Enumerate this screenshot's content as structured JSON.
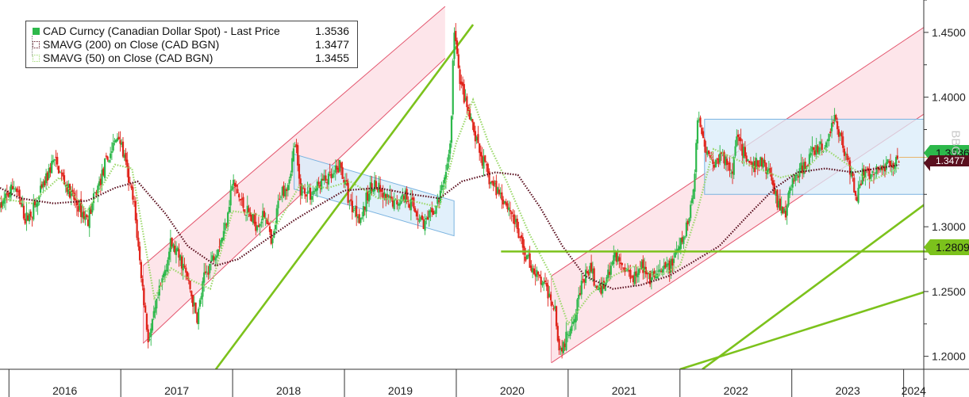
{
  "chart_data": {
    "type": "candlestick",
    "series": [
      {
        "name": "CAD Curncy (Canadian Dollar Spot) - Last Price",
        "last": 1.3536,
        "color": "#2db84b"
      },
      {
        "name": "SMAVG (200)  on Close (CAD BGN)",
        "last": 1.3477,
        "color": "#5a0f1e"
      },
      {
        "name": "SMAVG (50)  on Close (CAD BGN)",
        "last": 1.3455,
        "color": "#9bd86a"
      }
    ],
    "x_ticks": [
      "2016",
      "2017",
      "2018",
      "2019",
      "2020",
      "2021",
      "2022",
      "2023",
      "2024"
    ],
    "y_ticks": [
      "1.4500",
      "1.4000",
      "1.3500",
      "1.3000",
      "1.2500",
      "1.2000"
    ],
    "ylim": [
      1.19,
      1.475
    ],
    "xlim": [
      2015.92,
      2024.18
    ],
    "grid": false,
    "legend_position": "top-left",
    "price_path": [
      [
        2015.92,
        1.315
      ],
      [
        2016.05,
        1.332
      ],
      [
        2016.15,
        1.305
      ],
      [
        2016.25,
        1.318
      ],
      [
        2016.4,
        1.352
      ],
      [
        2016.55,
        1.325
      ],
      [
        2016.7,
        1.305
      ],
      [
        2016.85,
        1.345
      ],
      [
        2016.98,
        1.372
      ],
      [
        2017.05,
        1.345
      ],
      [
        2017.12,
        1.315
      ],
      [
        2017.2,
        1.248
      ],
      [
        2017.25,
        1.21
      ],
      [
        2017.3,
        1.232
      ],
      [
        2017.38,
        1.262
      ],
      [
        2017.45,
        1.287
      ],
      [
        2017.55,
        1.272
      ],
      [
        2017.62,
        1.252
      ],
      [
        2017.68,
        1.228
      ],
      [
        2017.75,
        1.262
      ],
      [
        2017.85,
        1.282
      ],
      [
        2017.92,
        1.295
      ],
      [
        2018.0,
        1.335
      ],
      [
        2018.08,
        1.318
      ],
      [
        2018.2,
        1.302
      ],
      [
        2018.3,
        1.31
      ],
      [
        2018.35,
        1.282
      ],
      [
        2018.42,
        1.325
      ],
      [
        2018.5,
        1.335
      ],
      [
        2018.56,
        1.365
      ],
      [
        2018.6,
        1.33
      ],
      [
        2018.7,
        1.325
      ],
      [
        2018.8,
        1.335
      ],
      [
        2018.9,
        1.338
      ],
      [
        2018.96,
        1.348
      ],
      [
        2019.05,
        1.318
      ],
      [
        2019.15,
        1.307
      ],
      [
        2019.25,
        1.335
      ],
      [
        2019.35,
        1.322
      ],
      [
        2019.45,
        1.318
      ],
      [
        2019.55,
        1.325
      ],
      [
        2019.65,
        1.31
      ],
      [
        2019.72,
        1.302
      ],
      [
        2019.8,
        1.312
      ],
      [
        2019.85,
        1.322
      ],
      [
        2019.9,
        1.34
      ],
      [
        2019.95,
        1.365
      ],
      [
        2019.98,
        1.455
      ],
      [
        2020.02,
        1.42
      ],
      [
        2020.08,
        1.395
      ],
      [
        2020.15,
        1.375
      ],
      [
        2020.2,
        1.36
      ],
      [
        2020.3,
        1.335
      ],
      [
        2020.4,
        1.325
      ],
      [
        2020.5,
        1.31
      ],
      [
        2020.6,
        1.282
      ],
      [
        2020.7,
        1.265
      ],
      [
        2020.8,
        1.252
      ],
      [
        2020.88,
        1.24
      ],
      [
        2020.92,
        1.205
      ],
      [
        2020.98,
        1.212
      ],
      [
        2021.05,
        1.232
      ],
      [
        2021.12,
        1.255
      ],
      [
        2021.2,
        1.268
      ],
      [
        2021.27,
        1.248
      ],
      [
        2021.35,
        1.262
      ],
      [
        2021.42,
        1.278
      ],
      [
        2021.5,
        1.268
      ],
      [
        2021.58,
        1.262
      ],
      [
        2021.65,
        1.272
      ],
      [
        2021.72,
        1.258
      ],
      [
        2021.8,
        1.262
      ],
      [
        2021.88,
        1.268
      ],
      [
        2021.95,
        1.275
      ],
      [
        2022.05,
        1.295
      ],
      [
        2022.12,
        1.328
      ],
      [
        2022.16,
        1.385
      ],
      [
        2022.22,
        1.365
      ],
      [
        2022.3,
        1.348
      ],
      [
        2022.38,
        1.355
      ],
      [
        2022.46,
        1.342
      ],
      [
        2022.52,
        1.375
      ],
      [
        2022.58,
        1.352
      ],
      [
        2022.65,
        1.345
      ],
      [
        2022.72,
        1.35
      ],
      [
        2022.8,
        1.342
      ],
      [
        2022.88,
        1.318
      ],
      [
        2022.94,
        1.31
      ],
      [
        2023.0,
        1.335
      ],
      [
        2023.1,
        1.345
      ],
      [
        2023.2,
        1.358
      ],
      [
        2023.3,
        1.362
      ],
      [
        2023.38,
        1.385
      ],
      [
        2023.45,
        1.365
      ],
      [
        2023.52,
        1.345
      ],
      [
        2023.58,
        1.322
      ],
      [
        2023.63,
        1.342
      ],
      [
        2023.7,
        1.338
      ],
      [
        2023.78,
        1.345
      ],
      [
        2023.85,
        1.348
      ],
      [
        2023.9,
        1.35
      ],
      [
        2023.96,
        1.3536
      ]
    ],
    "sma200_path": [
      [
        2015.92,
        1.33
      ],
      [
        2016.1,
        1.322
      ],
      [
        2016.4,
        1.318
      ],
      [
        2016.7,
        1.32
      ],
      [
        2016.95,
        1.33
      ],
      [
        2017.15,
        1.335
      ],
      [
        2017.4,
        1.31
      ],
      [
        2017.6,
        1.285
      ],
      [
        2017.85,
        1.27
      ],
      [
        2018.05,
        1.275
      ],
      [
        2018.3,
        1.29
      ],
      [
        2018.55,
        1.305
      ],
      [
        2018.8,
        1.318
      ],
      [
        2019.0,
        1.328
      ],
      [
        2019.3,
        1.33
      ],
      [
        2019.6,
        1.325
      ],
      [
        2019.85,
        1.322
      ],
      [
        2020.05,
        1.335
      ],
      [
        2020.35,
        1.342
      ],
      [
        2020.55,
        1.34
      ],
      [
        2020.75,
        1.315
      ],
      [
        2020.95,
        1.285
      ],
      [
        2021.15,
        1.262
      ],
      [
        2021.4,
        1.252
      ],
      [
        2021.65,
        1.255
      ],
      [
        2021.9,
        1.262
      ],
      [
        2022.1,
        1.272
      ],
      [
        2022.35,
        1.285
      ],
      [
        2022.6,
        1.308
      ],
      [
        2022.85,
        1.33
      ],
      [
        2023.05,
        1.342
      ],
      [
        2023.3,
        1.345
      ],
      [
        2023.55,
        1.342
      ],
      [
        2023.8,
        1.3455
      ],
      [
        2023.96,
        1.3477
      ]
    ],
    "sma50_path": [
      [
        2015.92,
        1.322
      ],
      [
        2016.2,
        1.318
      ],
      [
        2016.45,
        1.338
      ],
      [
        2016.7,
        1.312
      ],
      [
        2016.95,
        1.348
      ],
      [
        2017.1,
        1.345
      ],
      [
        2017.3,
        1.245
      ],
      [
        2017.45,
        1.268
      ],
      [
        2017.65,
        1.258
      ],
      [
        2017.8,
        1.252
      ],
      [
        2018.0,
        1.312
      ],
      [
        2018.2,
        1.31
      ],
      [
        2018.4,
        1.302
      ],
      [
        2018.6,
        1.332
      ],
      [
        2018.85,
        1.33
      ],
      [
        2019.05,
        1.335
      ],
      [
        2019.3,
        1.322
      ],
      [
        2019.6,
        1.32
      ],
      [
        2019.85,
        1.315
      ],
      [
        2020.0,
        1.365
      ],
      [
        2020.15,
        1.398
      ],
      [
        2020.3,
        1.362
      ],
      [
        2020.45,
        1.335
      ],
      [
        2020.65,
        1.295
      ],
      [
        2020.85,
        1.262
      ],
      [
        2021.0,
        1.225
      ],
      [
        2021.2,
        1.248
      ],
      [
        2021.4,
        1.262
      ],
      [
        2021.6,
        1.27
      ],
      [
        2021.8,
        1.262
      ],
      [
        2022.0,
        1.27
      ],
      [
        2022.15,
        1.31
      ],
      [
        2022.3,
        1.36
      ],
      [
        2022.5,
        1.352
      ],
      [
        2022.7,
        1.345
      ],
      [
        2022.9,
        1.338
      ],
      [
        2023.1,
        1.342
      ],
      [
        2023.3,
        1.36
      ],
      [
        2023.5,
        1.348
      ],
      [
        2023.7,
        1.335
      ],
      [
        2023.96,
        1.3455
      ]
    ],
    "green_lines": [
      {
        "from": [
          2017.85,
          1.19
        ],
        "to": [
          2020.15,
          1.456
        ]
      },
      {
        "from": [
          2022.2,
          1.19
        ],
        "to": [
          2024.2,
          1.318
        ]
      },
      {
        "from": [
          2022.0,
          1.19
        ],
        "to": [
          2024.2,
          1.25
        ]
      }
    ],
    "horizontal_level": {
      "value": 1.2809,
      "from": 2020.4
    },
    "annotations": [
      {
        "kind": "red-channel",
        "x": [
          2017.2,
          2019.9
        ],
        "lower": [
          1.21,
          1.43
        ],
        "upper": [
          1.27,
          1.47
        ]
      },
      {
        "kind": "red-channel",
        "x": [
          2020.85,
          2024.2
        ],
        "lower": [
          1.195,
          1.388
        ],
        "upper": [
          1.262,
          1.455
        ]
      },
      {
        "kind": "blue-box",
        "x": [
          2022.22,
          2024.2
        ],
        "y": [
          1.325,
          1.383
        ]
      },
      {
        "kind": "blue-flag",
        "x": [
          2018.55,
          2019.98
        ],
        "top": [
          1.356,
          1.32
        ],
        "bottom": [
          1.329,
          1.293
        ]
      }
    ]
  },
  "legend": {
    "rows": [
      {
        "label": "CAD Curncy (Canadian Dollar Spot) - Last Price",
        "value": "1.3536"
      },
      {
        "label": "SMAVG (200)  on Close (CAD BGN)",
        "value": "1.3477"
      },
      {
        "label": "SMAVG (50)  on Close (CAD BGN)",
        "value": "1.3455"
      }
    ]
  },
  "tags": {
    "last_price": "1.3536",
    "sma200": "1.3477",
    "level": "1.2809"
  },
  "watermark": "BBG",
  "colors": {
    "up": "#2db84b",
    "down": "#e0241b",
    "channel_fill": "#fde0e6",
    "channel_line": "#e3556d",
    "box_fill": "#d9ecfa",
    "box_line": "#7ab3e0",
    "trend_green": "#7cc21c",
    "sma200": "#5a0f1e",
    "sma50": "#9bd86a"
  }
}
